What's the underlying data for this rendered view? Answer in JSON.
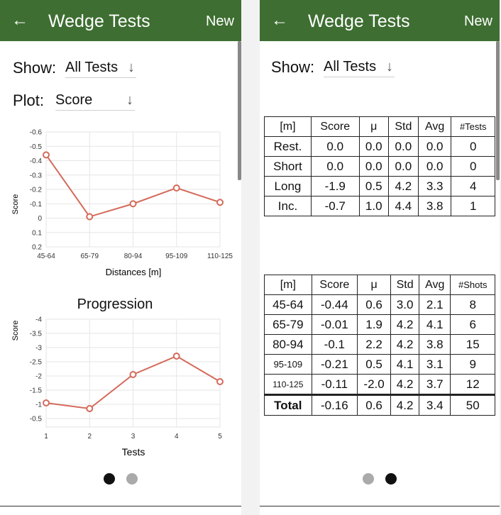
{
  "app": {
    "title": "Wedge Tests",
    "new_label": "New",
    "back_icon": "arrow-left-icon"
  },
  "left": {
    "show_label": "Show:",
    "show_value": "All Tests",
    "plot_label": "Plot:",
    "plot_value": "Score",
    "chart1": {
      "ylabel": "Score",
      "xlabel": "Distances [m]",
      "yticks": [
        "-0.6",
        "-0.5",
        "-0.4",
        "-0.3",
        "-0.2",
        "-0.1",
        "0",
        "0.1",
        "0.2"
      ],
      "xticks": [
        "45-64",
        "65-79",
        "80-94",
        "95-109",
        "110-125"
      ]
    },
    "chart2": {
      "title": "Progression",
      "ylabel": "Score",
      "xlabel": "Tests",
      "yticks": [
        "-4",
        "-3.5",
        "-3",
        "-2.5",
        "-2",
        "-1.5",
        "-1",
        "-0.5"
      ],
      "xticks": [
        "1",
        "2",
        "3",
        "4",
        "5"
      ]
    }
  },
  "chart_data": [
    {
      "type": "line",
      "categories": [
        "45-64",
        "65-79",
        "80-94",
        "95-109",
        "110-125"
      ],
      "values": [
        -0.44,
        -0.01,
        -0.1,
        -0.21,
        -0.11
      ],
      "title": "",
      "xlabel": "Distances [m]",
      "ylabel": "Score",
      "ylim": [
        0.2,
        -0.6
      ],
      "inverted_y": true,
      "color": "#d46a5a"
    },
    {
      "type": "line",
      "x": [
        1,
        2,
        3,
        4,
        5
      ],
      "values": [
        -1.05,
        -0.85,
        -2.05,
        -2.7,
        -1.8
      ],
      "title": "Progression",
      "xlabel": "Tests",
      "ylabel": "Score",
      "ylim": [
        -0.2,
        -4
      ],
      "inverted_y": true,
      "color": "#d46a5a"
    }
  ],
  "right": {
    "show_label": "Show:",
    "show_value": "All Tests",
    "table1": {
      "headers": [
        "[m]",
        "Score",
        "μ",
        "Std",
        "Avg",
        "#Tests"
      ],
      "rows": [
        [
          "Rest.",
          "0.0",
          "0.0",
          "0.0",
          "0.0",
          "0"
        ],
        [
          "Short",
          "0.0",
          "0.0",
          "0.0",
          "0.0",
          "0"
        ],
        [
          "Long",
          "-1.9",
          "0.5",
          "4.2",
          "3.3",
          "4"
        ],
        [
          "Inc.",
          "-0.7",
          "1.0",
          "4.4",
          "3.8",
          "1"
        ]
      ]
    },
    "table2": {
      "headers": [
        "[m]",
        "Score",
        "μ",
        "Std",
        "Avg",
        "#Shots"
      ],
      "rows": [
        [
          "45-64",
          "-0.44",
          "0.6",
          "3.0",
          "2.1",
          "8"
        ],
        [
          "65-79",
          "-0.01",
          "1.9",
          "4.2",
          "4.1",
          "6"
        ],
        [
          "80-94",
          "-0.1",
          "2.2",
          "4.2",
          "3.8",
          "15"
        ],
        [
          "95-109",
          "-0.21",
          "0.5",
          "4.1",
          "3.1",
          "9"
        ],
        [
          "110-125",
          "-0.11",
          "-2.0",
          "4.2",
          "3.7",
          "12"
        ],
        [
          "Total",
          "-0.16",
          "0.6",
          "4.2",
          "3.4",
          "50"
        ]
      ]
    }
  },
  "pager": {
    "left_active": 0,
    "right_active": 1
  },
  "colors": {
    "appbar": "#3e6e32",
    "line": "#d46a5a"
  }
}
